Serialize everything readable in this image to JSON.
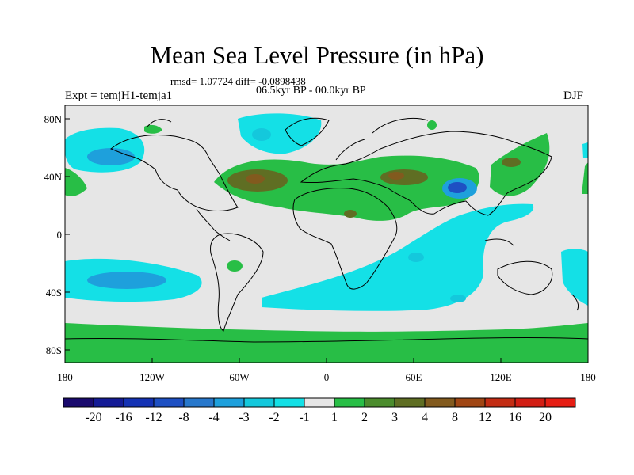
{
  "title": "Mean Sea Level Pressure (in hPa)",
  "stats": "rmsd= 1.07724 diff= -0.0898438",
  "period": "06.5kyr BP - 00.0kyr BP",
  "expt": "Expt = temjH1-temja1",
  "season": "DJF",
  "lat_labels": [
    "80N",
    "40N",
    "0",
    "40S",
    "80S"
  ],
  "lon_labels": [
    "180",
    "120W",
    "60W",
    "0",
    "60E",
    "120E",
    "180"
  ],
  "colorbar": {
    "labels": [
      "-20",
      "-16",
      "-12",
      "-8",
      "-4",
      "-3",
      "-2",
      "-1",
      "1",
      "2",
      "3",
      "4",
      "8",
      "12",
      "16",
      "20"
    ],
    "colors": [
      "#1a0a6e",
      "#141b96",
      "#1432b4",
      "#1e50c3",
      "#2878cc",
      "#1ea0dc",
      "#14c8dc",
      "#14e0e6",
      "#e6e6e6",
      "#28be46",
      "#4b8c2d",
      "#5f6e23",
      "#825a1e",
      "#a04614",
      "#c32d14",
      "#d21e14",
      "#e61e14"
    ]
  },
  "map_colors": {
    "ocean_bg": "#e6e6e6",
    "cyan": "#14e0e6",
    "blue_light": "#14c8dc",
    "blue": "#1ea0dc",
    "blue_dark": "#1e50c3",
    "green": "#28be46",
    "olive": "#5f6e23",
    "brown": "#825a1e"
  }
}
